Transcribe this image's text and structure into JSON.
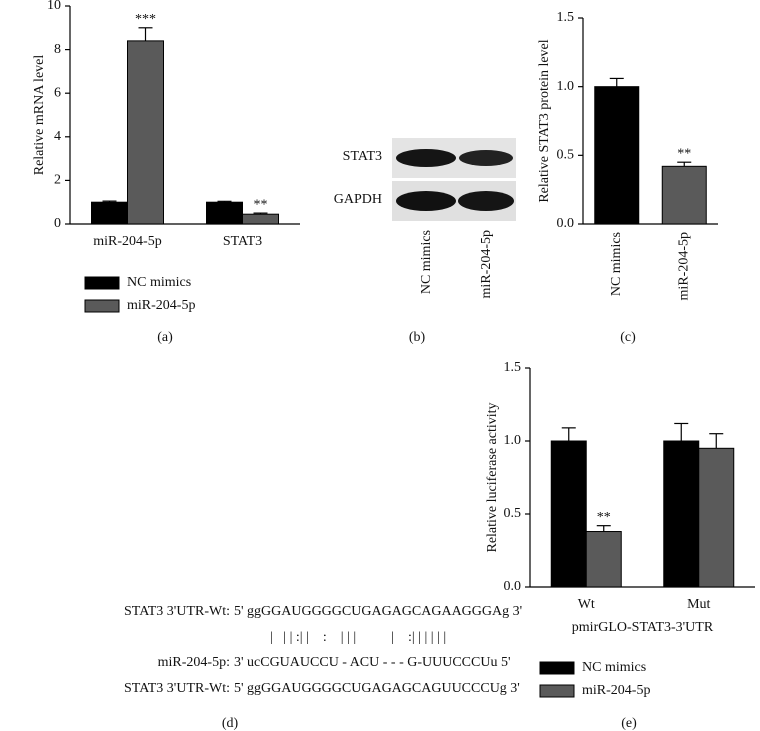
{
  "chart_data": [
    {
      "type": "bar",
      "caption": "(a)",
      "ylabel": "Relative mRNA level",
      "categories": [
        "miR-204-5p",
        "STAT3"
      ],
      "series": [
        {
          "name": "NC mimics",
          "color": "#000000",
          "values": [
            1.0,
            1.0
          ],
          "errors": [
            0.05,
            0.04
          ]
        },
        {
          "name": "miR-204-5p",
          "color": "#5a5a5a",
          "values": [
            8.4,
            0.45
          ],
          "errors": [
            0.6,
            0.05
          ],
          "annotations": [
            "***",
            "**"
          ]
        }
      ],
      "ylim": [
        0,
        10
      ],
      "yticks": [
        0,
        2,
        4,
        6,
        8,
        10
      ],
      "legend": "bottom",
      "rotate_categories": false
    },
    {
      "type": "bar",
      "caption": "(c)",
      "ylabel": "Relative STAT3 protein level",
      "categories": [
        "NC mimics",
        "miR-204-5p"
      ],
      "series": [
        {
          "colors": [
            "#000000",
            "#5a5a5a"
          ],
          "values": [
            1.0,
            0.42
          ],
          "errors": [
            0.06,
            0.03
          ],
          "annotations": [
            "",
            "**"
          ]
        }
      ],
      "ylim": [
        0,
        1.5
      ],
      "yticks": [
        {
          "value": 0,
          "label": "0.0"
        },
        0.5,
        {
          "value": 1,
          "label": "1.0"
        },
        1.5
      ],
      "rotate_categories": true
    },
    {
      "type": "bar",
      "caption": "(e)",
      "ylabel": "Relative luciferase activity",
      "xlabel": "pmirGLO-STAT3-3'UTR",
      "categories": [
        "Wt",
        "Mut"
      ],
      "series": [
        {
          "name": "NC mimics",
          "color": "#000000",
          "values": [
            1.0,
            1.0
          ],
          "errors": [
            0.09,
            0.12
          ]
        },
        {
          "name": "miR-204-5p",
          "color": "#5a5a5a",
          "values": [
            0.38,
            0.95
          ],
          "errors": [
            0.04,
            0.1
          ],
          "annotations": [
            "**",
            ""
          ]
        }
      ],
      "ylim": [
        0,
        1.5
      ],
      "yticks": [
        {
          "value": 0,
          "label": "0.0"
        },
        0.5,
        {
          "value": 1,
          "label": "1.0"
        },
        1.5
      ],
      "legend": "bottom",
      "rotate_categories": false
    }
  ],
  "blot": {
    "caption": "(b)",
    "rows": [
      "STAT3",
      "GAPDH"
    ],
    "lanes": [
      "NC mimics",
      "miR-204-5p"
    ]
  },
  "sequence": {
    "caption": "(d)",
    "lines": [
      {
        "label": "STAT3 3'UTR-Wt:",
        "seq": "5' ggGGAUGGGGCUGAGAGCAGAAGGGAg 3'"
      },
      {
        "label": "miR-204-5p:",
        "seq": "3' ucCGUAUCCU - ACU - - - G-UUUCCCUu 5'"
      },
      {
        "label": "STAT3 3'UTR-Wt:",
        "seq": "5' ggGGAUGGGGCUGAGAGCAGUUCCCUg 3'"
      }
    ],
    "pairing": "|   | | :| |    :    | | |          |    :| | | | | |"
  }
}
